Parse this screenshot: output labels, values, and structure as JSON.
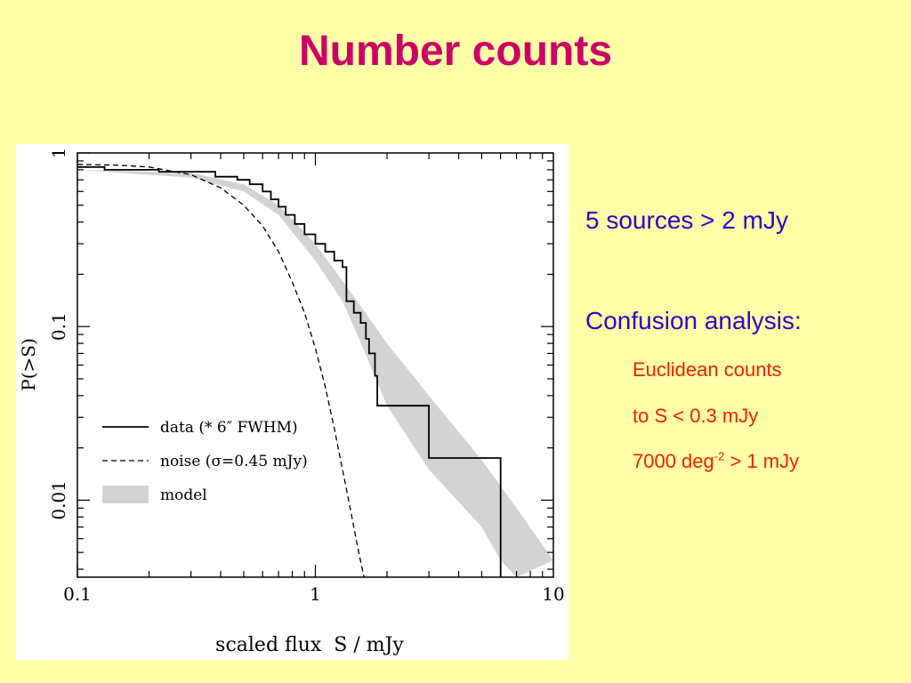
{
  "slide": {
    "title": "Number counts",
    "bullet_1": "5 sources > 2 mJy",
    "bullet_2": "Confusion analysis:",
    "sub_1": "Euclidean counts",
    "sub_2": "to  S < 0.3 mJy",
    "sub_3_pre": "7000 deg",
    "sub_3_sup": "-2",
    "sub_3_post": "  > 1 mJy"
  },
  "colors": {
    "title": "#cc0066",
    "bullet": "#3300cc",
    "sub": "#ee2200",
    "background": "#ffffa8",
    "model_band": "#d3d3d3"
  },
  "chart_data": {
    "type": "line",
    "xlabel": "scaled flux  S / mJy",
    "ylabel": "P(>S)",
    "xscale": "log",
    "yscale": "log",
    "xlim": [
      0.1,
      10
    ],
    "ylim": [
      0.0036,
      1
    ],
    "x_ticks": [
      {
        "value": 0.1,
        "label": "0.1"
      },
      {
        "value": 1,
        "label": "1"
      },
      {
        "value": 10,
        "label": "10"
      }
    ],
    "y_ticks": [
      {
        "value": 0.01,
        "label": "0.01"
      },
      {
        "value": 0.1,
        "label": "0.1"
      },
      {
        "value": 1,
        "label": "1"
      }
    ],
    "legend_position": "lower-left",
    "legend": [
      {
        "key": "data",
        "label": "data (* 6″ FWHM)"
      },
      {
        "key": "noise",
        "label": "noise (σ=0.45 mJy)"
      },
      {
        "key": "model",
        "label": "model"
      }
    ],
    "series": [
      {
        "key": "data",
        "style": "solid step",
        "points": [
          [
            0.1,
            0.83
          ],
          [
            0.13,
            0.83
          ],
          [
            0.13,
            0.8
          ],
          [
            0.22,
            0.8
          ],
          [
            0.22,
            0.78
          ],
          [
            0.38,
            0.78
          ],
          [
            0.38,
            0.73
          ],
          [
            0.47,
            0.73
          ],
          [
            0.47,
            0.7
          ],
          [
            0.53,
            0.7
          ],
          [
            0.53,
            0.66
          ],
          [
            0.6,
            0.66
          ],
          [
            0.6,
            0.6
          ],
          [
            0.65,
            0.6
          ],
          [
            0.65,
            0.54
          ],
          [
            0.7,
            0.54
          ],
          [
            0.7,
            0.49
          ],
          [
            0.75,
            0.49
          ],
          [
            0.75,
            0.44
          ],
          [
            0.82,
            0.44
          ],
          [
            0.82,
            0.39
          ],
          [
            0.9,
            0.39
          ],
          [
            0.9,
            0.34
          ],
          [
            1.0,
            0.34
          ],
          [
            1.0,
            0.3
          ],
          [
            1.1,
            0.3
          ],
          [
            1.1,
            0.27
          ],
          [
            1.2,
            0.27
          ],
          [
            1.2,
            0.24
          ],
          [
            1.3,
            0.24
          ],
          [
            1.3,
            0.22
          ],
          [
            1.35,
            0.22
          ],
          [
            1.35,
            0.14
          ],
          [
            1.45,
            0.14
          ],
          [
            1.45,
            0.12
          ],
          [
            1.55,
            0.12
          ],
          [
            1.55,
            0.105
          ],
          [
            1.63,
            0.105
          ],
          [
            1.63,
            0.085
          ],
          [
            1.68,
            0.085
          ],
          [
            1.68,
            0.07
          ],
          [
            1.78,
            0.07
          ],
          [
            1.78,
            0.052
          ],
          [
            1.82,
            0.052
          ],
          [
            1.82,
            0.035
          ],
          [
            3.0,
            0.035
          ],
          [
            3.0,
            0.0175
          ],
          [
            6.0,
            0.0175
          ],
          [
            6.0,
            0.0036
          ]
        ]
      },
      {
        "key": "noise",
        "style": "dashed",
        "points": [
          [
            0.1,
            0.86
          ],
          [
            0.15,
            0.85
          ],
          [
            0.2,
            0.83
          ],
          [
            0.3,
            0.75
          ],
          [
            0.4,
            0.63
          ],
          [
            0.5,
            0.5
          ],
          [
            0.6,
            0.38
          ],
          [
            0.7,
            0.27
          ],
          [
            0.8,
            0.18
          ],
          [
            0.9,
            0.12
          ],
          [
            1.0,
            0.075
          ],
          [
            1.1,
            0.045
          ],
          [
            1.2,
            0.026
          ],
          [
            1.3,
            0.015
          ],
          [
            1.4,
            0.009
          ],
          [
            1.5,
            0.0055
          ],
          [
            1.6,
            0.0036
          ]
        ]
      }
    ],
    "model_band": {
      "key": "model",
      "upper": [
        [
          0.1,
          0.8
        ],
        [
          0.3,
          0.77
        ],
        [
          0.5,
          0.66
        ],
        [
          0.7,
          0.5
        ],
        [
          1.0,
          0.3
        ],
        [
          1.5,
          0.14
        ],
        [
          2.0,
          0.08
        ],
        [
          3.0,
          0.04
        ],
        [
          5.0,
          0.017
        ],
        [
          7.0,
          0.009
        ],
        [
          10.0,
          0.0045
        ]
      ],
      "lower": [
        [
          0.1,
          0.8
        ],
        [
          0.3,
          0.72
        ],
        [
          0.5,
          0.6
        ],
        [
          0.7,
          0.44
        ],
        [
          1.0,
          0.24
        ],
        [
          1.3,
          0.14
        ],
        [
          1.5,
          0.09
        ],
        [
          2.0,
          0.035
        ],
        [
          3.0,
          0.015
        ],
        [
          5.0,
          0.007
        ],
        [
          6.0,
          0.0045
        ],
        [
          7.0,
          0.0036
        ]
      ]
    }
  }
}
